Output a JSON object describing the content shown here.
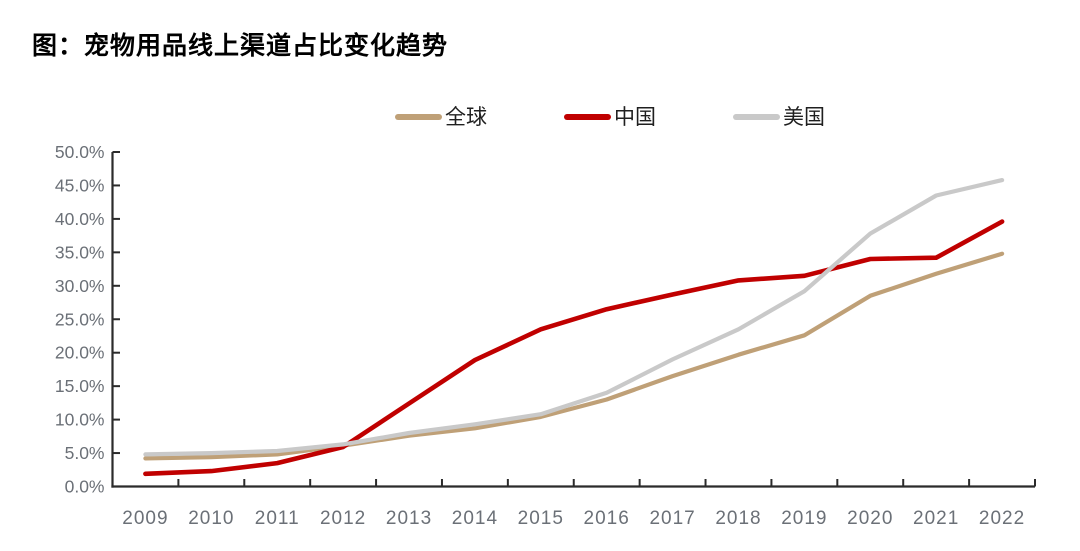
{
  "title": "图：宠物用品线上渠道占比变化趋势",
  "legend": [
    {
      "label": "全球",
      "color": "#BFA077"
    },
    {
      "label": "中国",
      "color": "#C00000"
    },
    {
      "label": "美国",
      "color": "#C9C9C9"
    }
  ],
  "chart_data": {
    "type": "line",
    "title": "图：宠物用品线上渠道占比变化趋势",
    "categories": [
      "2009",
      "2010",
      "2011",
      "2012",
      "2013",
      "2014",
      "2015",
      "2016",
      "2017",
      "2018",
      "2019",
      "2020",
      "2021",
      "2022"
    ],
    "series": [
      {
        "key": "global",
        "name": "全球",
        "color": "#BFA077",
        "values": [
          4.2,
          4.4,
          4.8,
          6.1,
          7.6,
          8.7,
          10.4,
          13.0,
          16.5,
          19.7,
          22.6,
          28.5,
          31.8,
          34.8
        ]
      },
      {
        "key": "china",
        "name": "中国",
        "color": "#C00000",
        "values": [
          1.9,
          2.3,
          3.5,
          5.9,
          12.4,
          18.9,
          23.5,
          26.5,
          28.7,
          30.8,
          31.5,
          34.0,
          34.2,
          39.6
        ]
      },
      {
        "key": "us",
        "name": "美国",
        "color": "#C9C9C9",
        "values": [
          4.8,
          5.0,
          5.3,
          6.3,
          8.0,
          9.3,
          10.8,
          14.0,
          19.0,
          23.5,
          29.2,
          37.8,
          43.5,
          45.8
        ]
      }
    ],
    "ylim": [
      0,
      50
    ],
    "yticks": [
      0,
      5,
      10,
      15,
      20,
      25,
      30,
      35,
      40,
      45,
      50
    ],
    "ytick_labels": [
      "0.0%",
      "5.0%",
      "10.0%",
      "15.0%",
      "20.0%",
      "25.0%",
      "30.0%",
      "35.0%",
      "40.0%",
      "45.0%",
      "50.0%"
    ],
    "xlabel": "",
    "ylabel": "",
    "grid": false,
    "legend_position": "top",
    "axis_color": "#2b2b2b",
    "tick_label_color": "#6b7077"
  }
}
